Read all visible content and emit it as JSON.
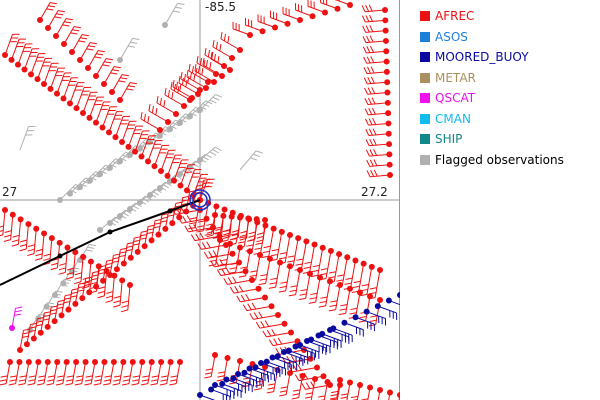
{
  "map": {
    "grid_labels": {
      "top": "-85.5",
      "left": "27",
      "right": "27.2"
    }
  },
  "legend": {
    "items": [
      {
        "label": "AFREC",
        "color": "#ee1111"
      },
      {
        "label": "ASOS",
        "color": "#1e7fd8"
      },
      {
        "label": "MOORED_BUOY",
        "color": "#0a0aa0"
      },
      {
        "label": "METAR",
        "color": "#a89060"
      },
      {
        "label": "QSCAT",
        "color": "#ee11ee"
      },
      {
        "label": "CMAN",
        "color": "#11bbee"
      },
      {
        "label": "SHIP",
        "color": "#118888"
      },
      {
        "label": "Flagged observations",
        "color": "#b0b0b0"
      }
    ]
  }
}
